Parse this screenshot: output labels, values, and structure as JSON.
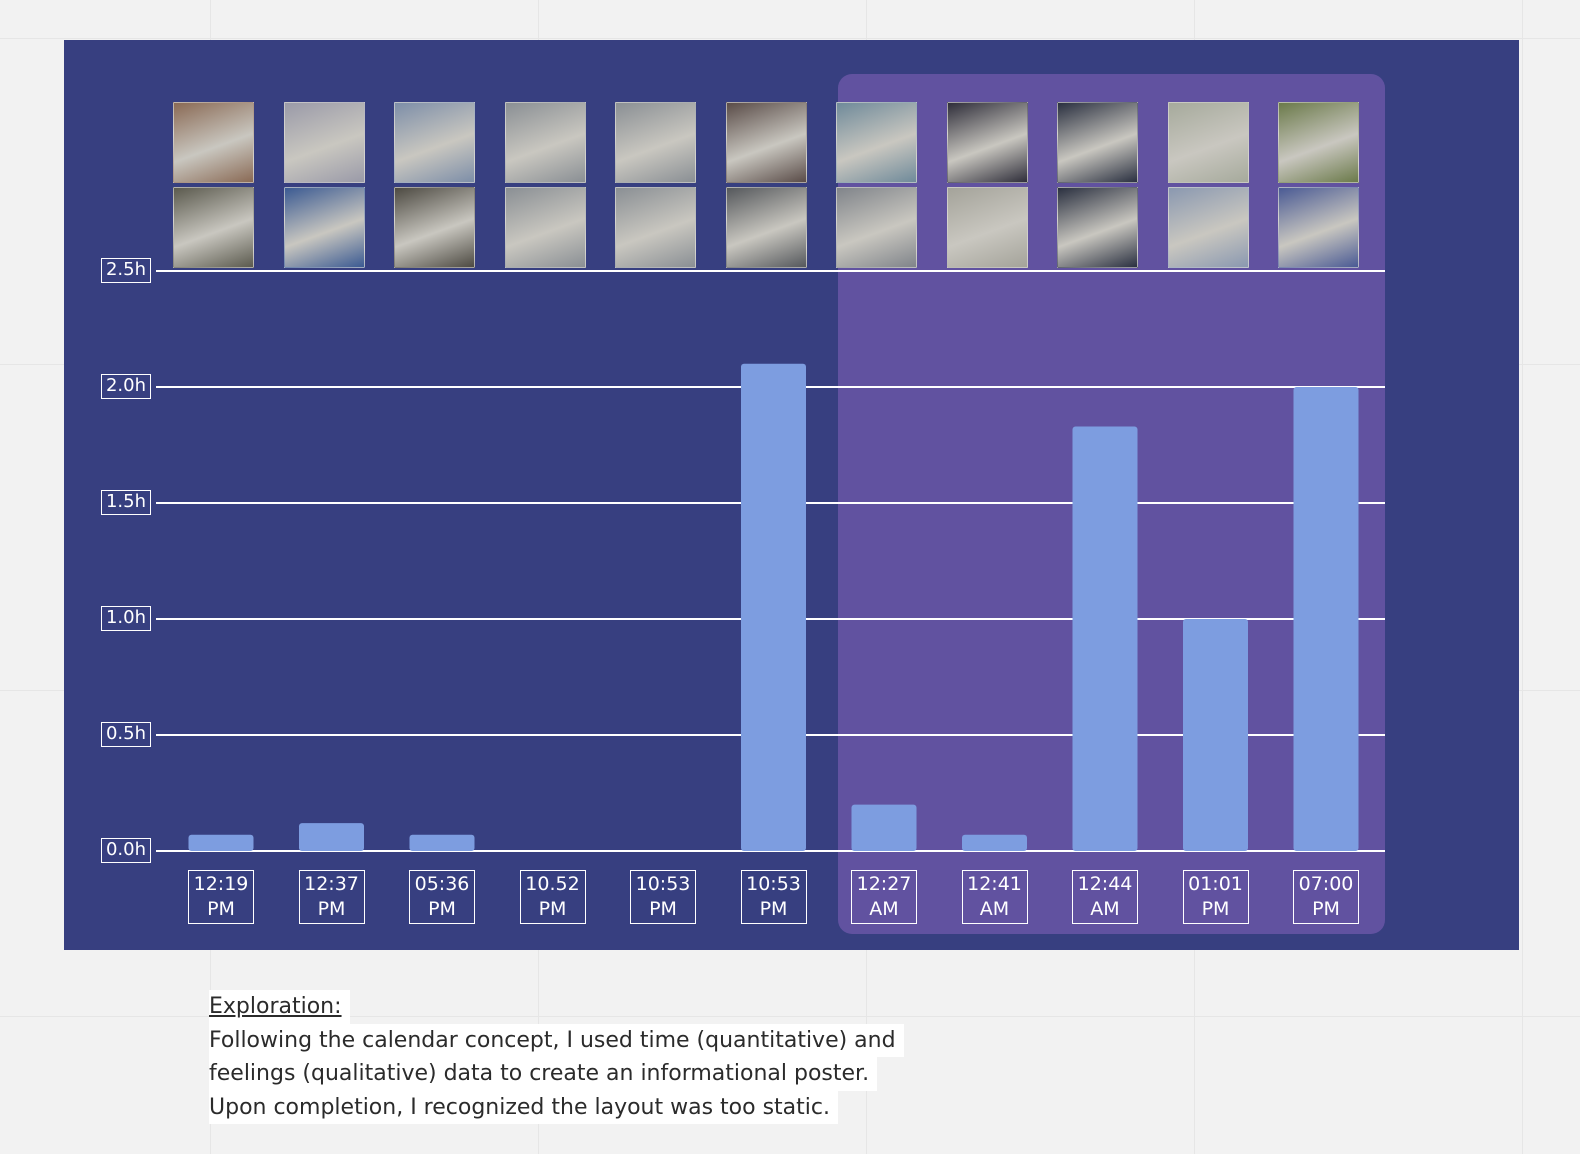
{
  "chart_data": {
    "type": "bar",
    "y_tick_labels": [
      "0.0h",
      "0.5h",
      "1.0h",
      "1.5h",
      "2.0h",
      "2.5h"
    ],
    "ylim": [
      0,
      2.5
    ],
    "grid": true,
    "categories": [
      {
        "time": "12:19",
        "period": "PM"
      },
      {
        "time": "12:37",
        "period": "PM"
      },
      {
        "time": "05:36",
        "period": "PM"
      },
      {
        "time": "10.52",
        "period": "PM"
      },
      {
        "time": "10:53",
        "period": "PM"
      },
      {
        "time": "10:53",
        "period": "PM"
      },
      {
        "time": "12:27",
        "period": "AM"
      },
      {
        "time": "12:41",
        "period": "AM"
      },
      {
        "time": "12:44",
        "period": "AM"
      },
      {
        "time": "01:01",
        "period": "PM"
      },
      {
        "time": "07:00",
        "period": "PM"
      }
    ],
    "values": [
      0.07,
      0.12,
      0.07,
      0,
      0,
      2.1,
      0.2,
      0.07,
      1.83,
      1.0,
      2.0
    ],
    "highlighted_range": [
      6,
      10
    ],
    "thumbnail_rows": 2,
    "colors": {
      "background": "#373f80",
      "highlight": "#6152a0",
      "bar": "#7d9de0",
      "gridline": "#ffffff",
      "label": "#ffffff"
    }
  },
  "thumbnails": [
    {
      "top": "#8a6a55",
      "bottom": "#5b5a4e"
    },
    {
      "top": "#9a9aa8",
      "bottom": "#3b5a92"
    },
    {
      "top": "#7d8ea8",
      "bottom": "#4d4a42"
    },
    {
      "top": "#8a8f94",
      "bottom": "#8a8f94"
    },
    {
      "top": "#8a8f94",
      "bottom": "#8a8f94"
    },
    {
      "top": "#5a4c48",
      "bottom": "#55585c"
    },
    {
      "top": "#6f8a9a",
      "bottom": "#80848a"
    },
    {
      "top": "#2f2e3a",
      "bottom": "#a4a39a"
    },
    {
      "top": "#2a3040",
      "bottom": "#2a3040"
    },
    {
      "top": "#a6aa9c",
      "bottom": "#8a98b0"
    },
    {
      "top": "#6b7a4a",
      "bottom": "#4a5a94"
    }
  ],
  "note": {
    "heading": "Exploration:",
    "lines": [
      "Following the calendar concept, I used time (quantitative) and",
      "feelings (qualitative) data to create an informational poster.",
      "Upon completion, I recognized the layout was too static."
    ]
  }
}
